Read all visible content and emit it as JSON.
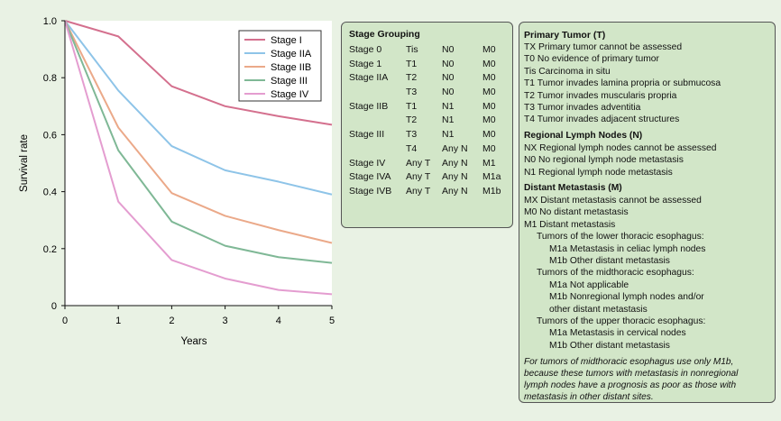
{
  "chart_data": {
    "type": "line",
    "x": [
      0,
      1,
      2,
      3,
      4,
      5
    ],
    "xlabel": "Years",
    "ylabel": "Survival rate",
    "xlim": [
      0,
      5
    ],
    "ylim": [
      0,
      1.0
    ],
    "xticks": [
      "0",
      "1",
      "2",
      "3",
      "4",
      "5"
    ],
    "yticks": [
      "0",
      "0.2",
      "0.4",
      "0.6",
      "0.8",
      "1.0"
    ],
    "ytick_values": [
      0,
      0.2,
      0.4,
      0.6,
      0.8,
      1.0
    ],
    "legend_position": "top-right",
    "series": [
      {
        "name": "Stage I",
        "color": "#d4708e",
        "values": [
          1.0,
          0.945,
          0.77,
          0.7,
          0.665,
          0.635
        ]
      },
      {
        "name": "Stage IIA",
        "color": "#8ec4e8",
        "values": [
          1.0,
          0.755,
          0.56,
          0.475,
          0.435,
          0.39
        ]
      },
      {
        "name": "Stage IIB",
        "color": "#eba989",
        "values": [
          1.0,
          0.625,
          0.395,
          0.315,
          0.265,
          0.22
        ]
      },
      {
        "name": "Stage III",
        "color": "#7fb896",
        "values": [
          1.0,
          0.545,
          0.295,
          0.21,
          0.17,
          0.15
        ]
      },
      {
        "name": "Stage IV",
        "color": "#e49dd0",
        "values": [
          1.0,
          0.365,
          0.16,
          0.095,
          0.055,
          0.04
        ]
      }
    ]
  },
  "stage_grouping": {
    "title": "Stage Grouping",
    "rows": [
      [
        "Stage 0",
        "Tis",
        "N0",
        "M0"
      ],
      [
        "Stage 1",
        "T1",
        "N0",
        "M0"
      ],
      [
        "Stage IIA",
        "T2",
        "N0",
        "M0"
      ],
      [
        "",
        "T3",
        "N0",
        "M0"
      ],
      [
        "Stage IIB",
        "T1",
        "N1",
        "M0"
      ],
      [
        "",
        "T2",
        "N1",
        "M0"
      ],
      [
        "Stage III",
        "T3",
        "N1",
        "M0"
      ],
      [
        "",
        "T4",
        "Any N",
        "M0"
      ],
      [
        "Stage IV",
        "Any T",
        "Any N",
        "M1"
      ],
      [
        "Stage IVA",
        "Any T",
        "Any N",
        "M1a"
      ],
      [
        "Stage IVB",
        "Any T",
        "Any N",
        "M1b"
      ]
    ]
  },
  "tnm": {
    "primary_title": "Primary Tumor (T)",
    "primary": [
      "TX Primary tumor cannot be assessed",
      "T0  No evidence of primary tumor",
      "Tis Carcinoma in situ",
      "T1 Tumor invades lamina propria or submucosa",
      "T2 Tumor invades muscularis propria",
      "T3 Tumor invades adventitia",
      "T4 Tumor invades adjacent structures"
    ],
    "nodes_title": "Regional Lymph Nodes (N)",
    "nodes": [
      "NX Regional lymph nodes cannot be assessed",
      "N0 No regional lymph node metastasis",
      "N1 Regional lymph node metastasis"
    ],
    "metastasis_title": "Distant Metastasis (M)",
    "metastasis": [
      "MX Distant metastasis cannot be assessed",
      "M0  No distant metastasis",
      "M1 Distant metastasis"
    ],
    "lower_title": "Tumors of the lower thoracic esophagus:",
    "lower": [
      "M1a Metastasis in celiac lymph nodes",
      "M1b Other distant metastasis"
    ],
    "mid_title": "Tumors of the midthoracic esophagus:",
    "mid": [
      "M1a  Not applicable",
      "M1b  Nonregional lymph nodes and/or",
      "other distant metastasis"
    ],
    "upper_title": "Tumors of the upper thoracic esophagus:",
    "upper": [
      "M1a Metastasis in cervical nodes",
      "M1b Other distant metastasis"
    ],
    "note_lines": [
      "For tumors of midthoracic esophagus use only M1b,",
      "because these tumors with metastasis in nonregional",
      "lymph nodes have a prognosis as poor as those with",
      "metastasis in other distant sites."
    ]
  }
}
